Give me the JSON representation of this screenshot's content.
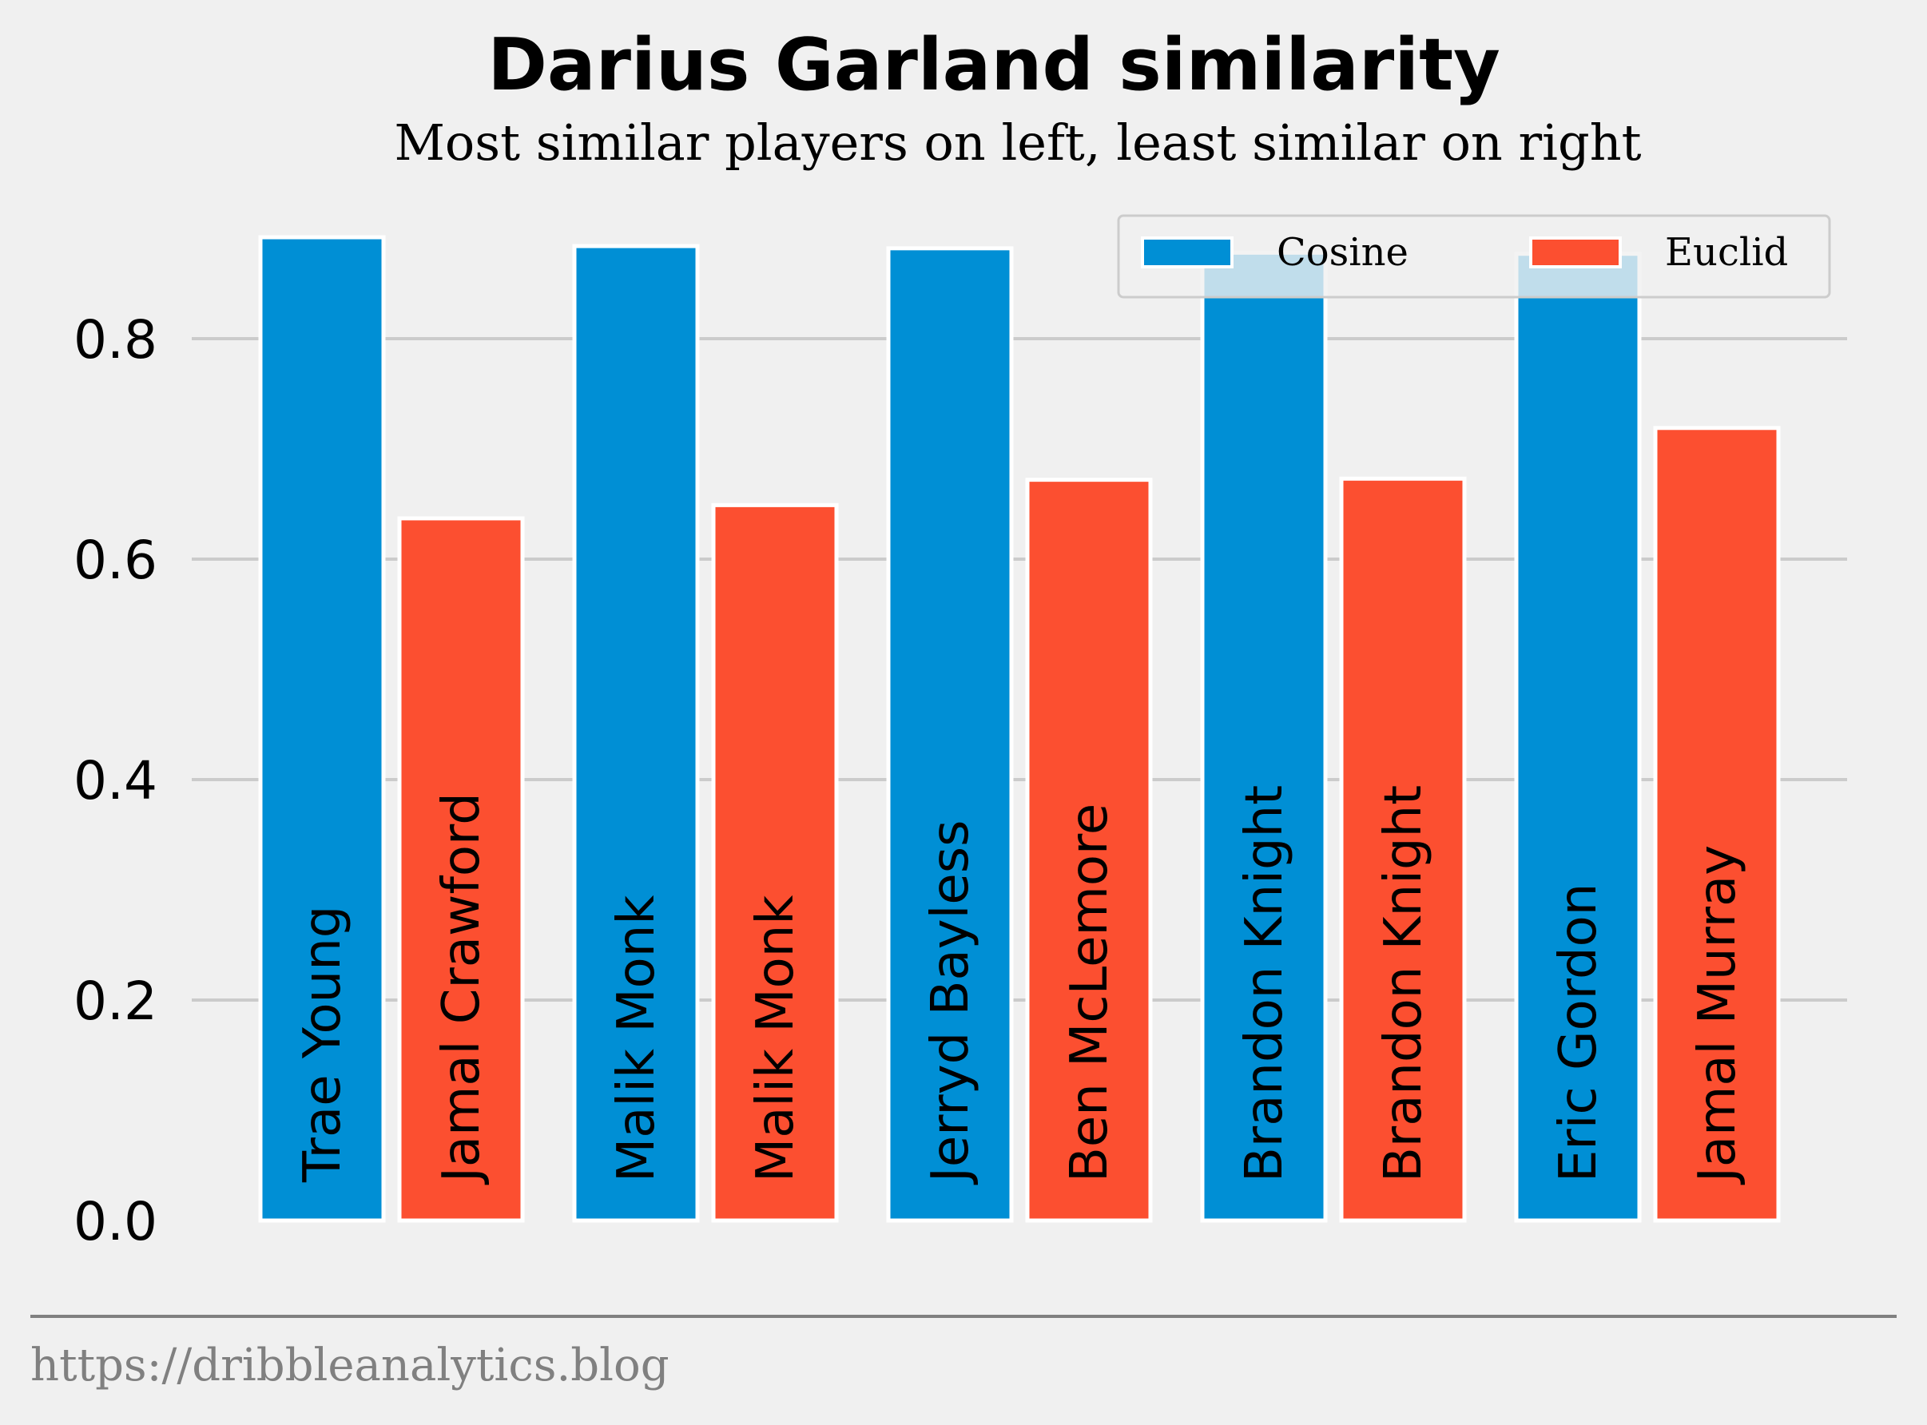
{
  "chart_data": {
    "type": "bar",
    "title": "Darius Garland similarity",
    "subtitle": "Most similar players on left, least similar on right",
    "xlabel": "",
    "ylabel": "",
    "ylim": [
      0,
      0.9
    ],
    "yticks": [
      "0.0",
      "0.2",
      "0.4",
      "0.6",
      "0.8"
    ],
    "grid": "horizontal",
    "legend_position": "top-right",
    "series": [
      {
        "name": "Cosine",
        "color": "#008fd5",
        "labels": [
          "Trae Young",
          "Malik Monk",
          "Jerryd Bayless",
          "Brandon Knight",
          "Eric Gordon"
        ],
        "values": [
          0.892,
          0.884,
          0.882,
          0.878,
          0.877
        ]
      },
      {
        "name": "Euclid",
        "color": "#fc4f30",
        "labels": [
          "Jamal Crawford",
          "Malik Monk",
          "Ben McLemore",
          "Brandon Knight",
          "Jamal Murray"
        ],
        "values": [
          0.637,
          0.649,
          0.672,
          0.673,
          0.719
        ]
      }
    ]
  },
  "footer": {
    "source": "https://dribbleanalytics.blog"
  },
  "colors": {
    "background": "#f0f0f0",
    "grid": "#cbcbcb",
    "footer_line": "#808080"
  }
}
